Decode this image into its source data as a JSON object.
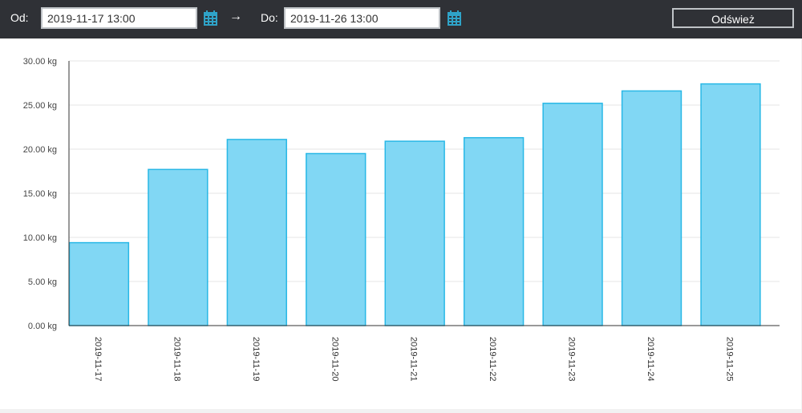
{
  "toolbar": {
    "from_label": "Od:",
    "from_value": "2019-11-17 13:00",
    "arrow": "→",
    "to_label": "Do:",
    "to_value": "2019-11-26 13:00",
    "refresh_label": "Odśwież",
    "calendar_icon": "calendar-icon"
  },
  "colors": {
    "toolbar_bg": "#2f3136",
    "bar_fill": "#81d7f4",
    "bar_stroke": "#29b8e6",
    "calendar": "#2fa3c8"
  },
  "chart_data": {
    "type": "bar",
    "categories": [
      "2019-11-17",
      "2019-11-18",
      "2019-11-19",
      "2019-11-20",
      "2019-11-21",
      "2019-11-22",
      "2019-11-23",
      "2019-11-24",
      "2019-11-25"
    ],
    "values": [
      9.4,
      17.7,
      21.1,
      19.5,
      20.9,
      21.3,
      25.2,
      26.6,
      27.4
    ],
    "unit": "kg",
    "yticks": [
      "0.00 kg",
      "5.00 kg",
      "10.00 kg",
      "15.00 kg",
      "20.00 kg",
      "25.00 kg",
      "30.00 kg"
    ],
    "ylim": [
      0,
      30
    ],
    "grid": true
  }
}
